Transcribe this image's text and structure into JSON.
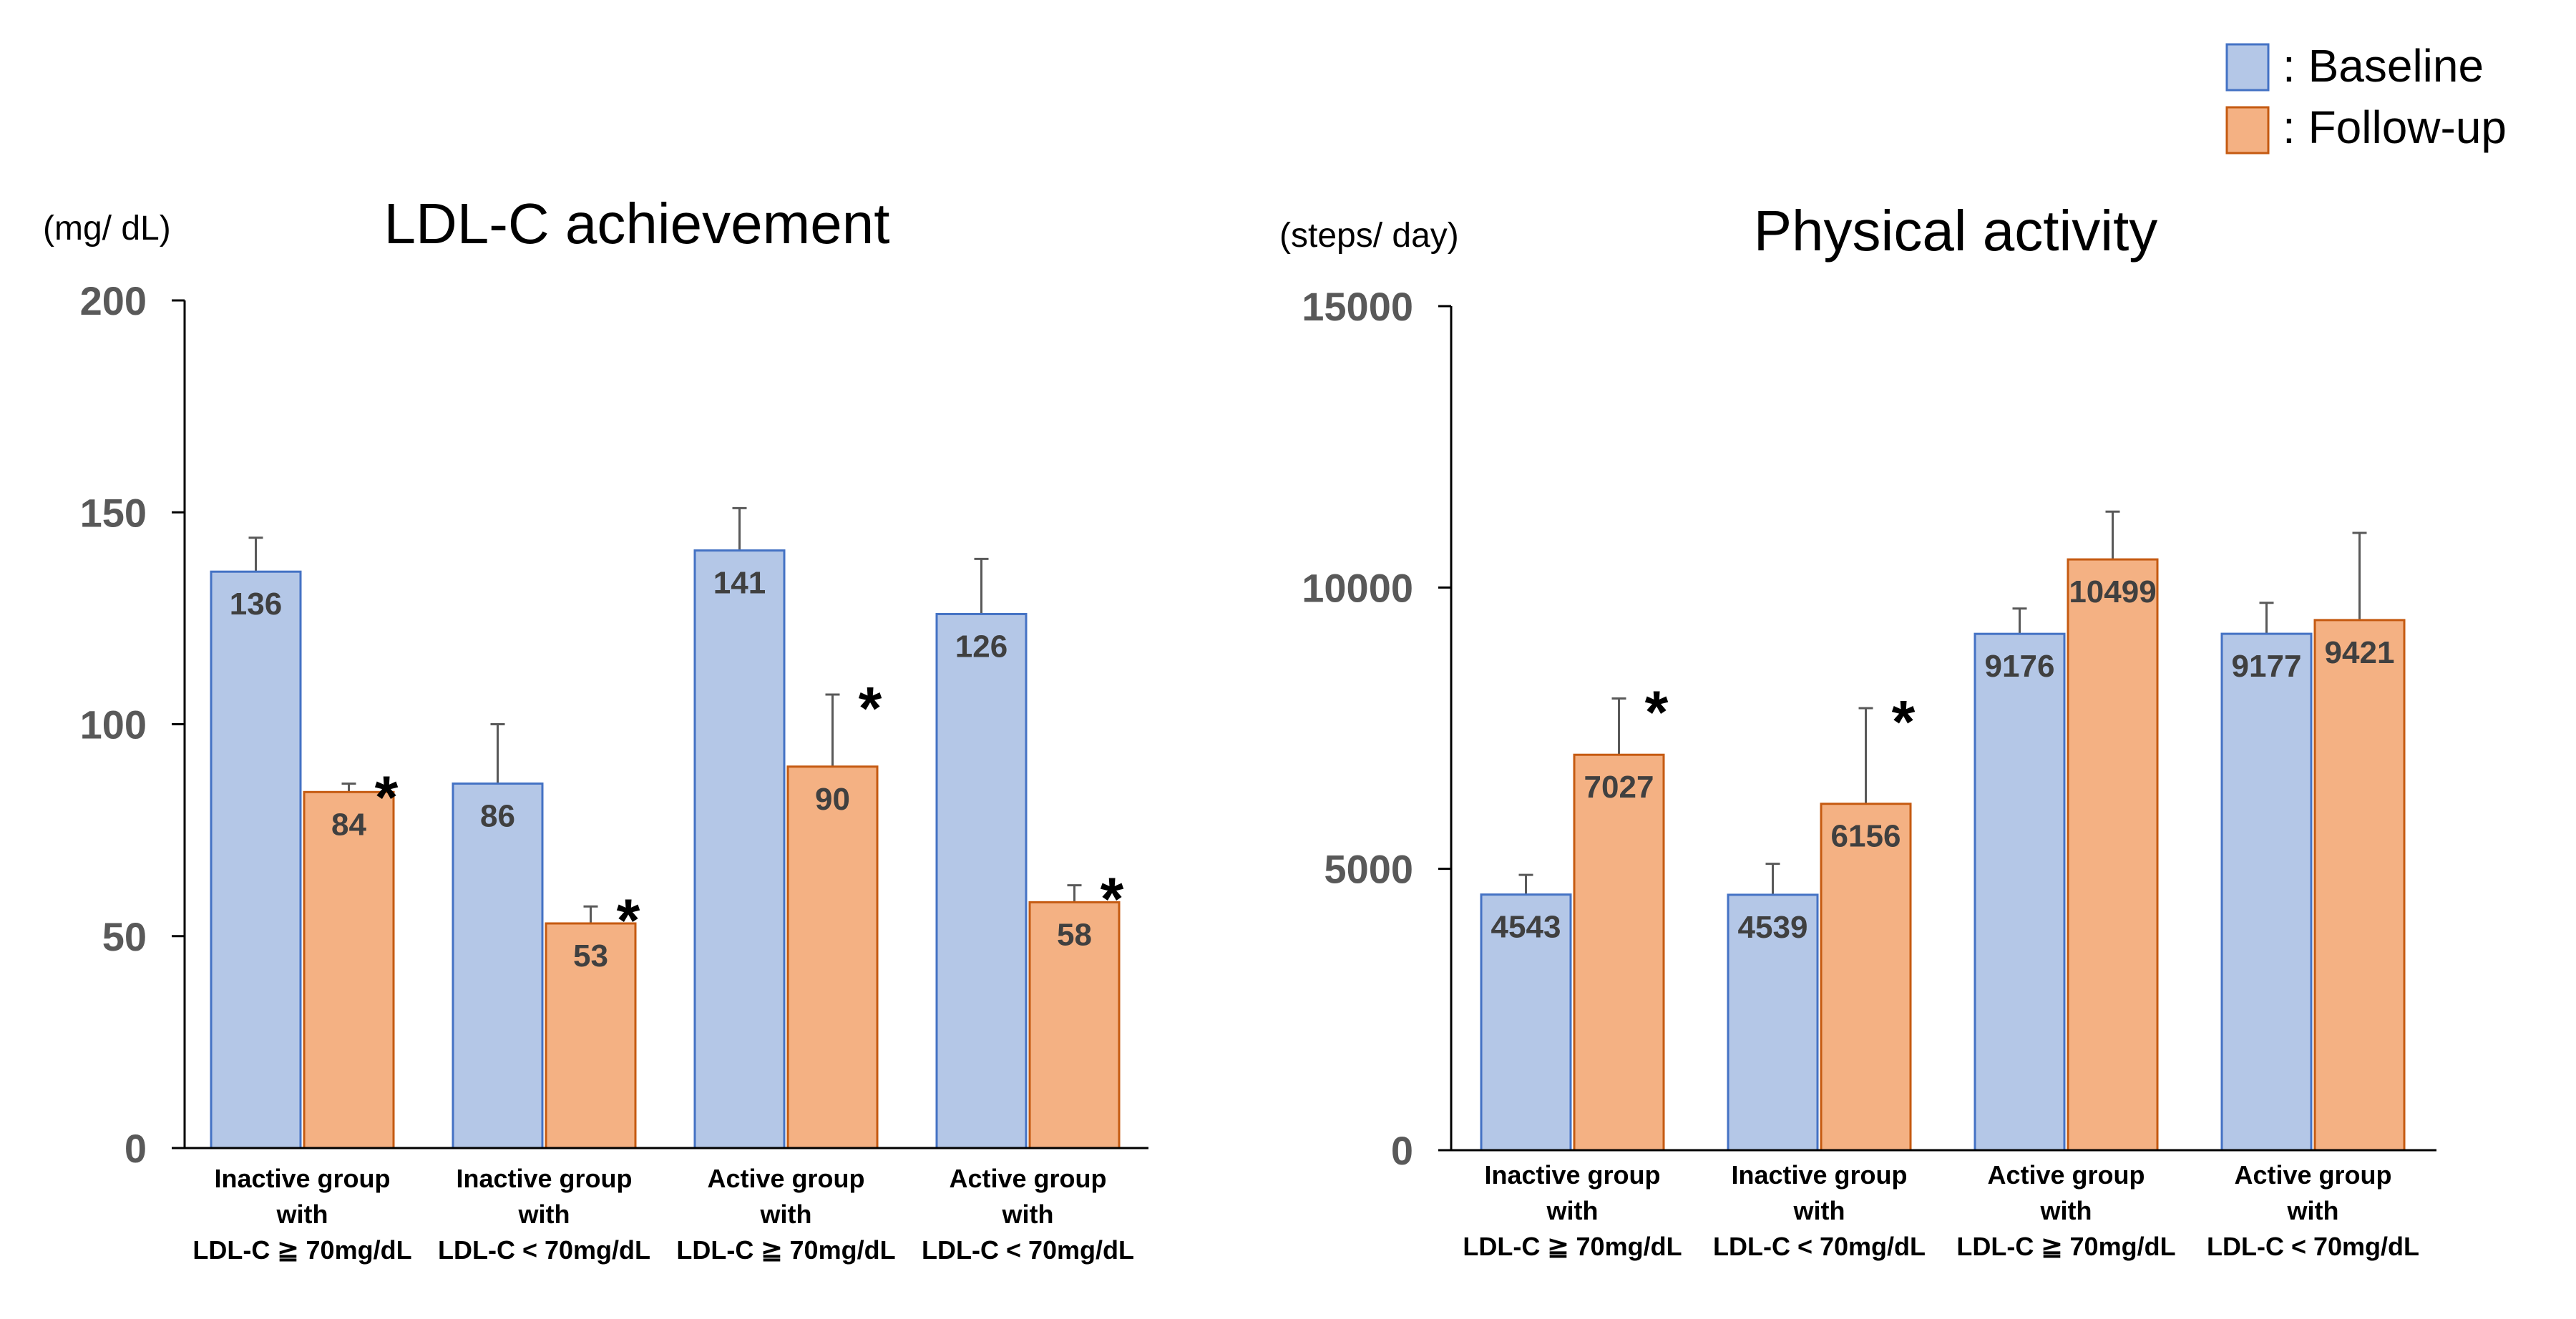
{
  "legend": {
    "baseline_label": ": Baseline",
    "followup_label": ": Follow-up",
    "baseline_color": "#b4c7e7",
    "baseline_border": "#4472c4",
    "followup_color": "#f4b183",
    "followup_border": "#c55a11"
  },
  "chart_data": [
    {
      "type": "bar",
      "title": "LDL-C achievement",
      "unit_label": "(mg/ dL)",
      "ylim": [
        0,
        200
      ],
      "yticks": [
        "0",
        "50",
        "100",
        "150",
        "200"
      ],
      "ytick_values": [
        0,
        50,
        100,
        150,
        200
      ],
      "categories": [
        [
          "Inactive group",
          "with",
          "LDL-C  ≧  70mg/dL"
        ],
        [
          "Inactive group",
          "with",
          "LDL-C  < 70mg/dL"
        ],
        [
          "Active group",
          "with",
          "LDL-C  ≧  70mg/dL"
        ],
        [
          "Active group",
          "with",
          "LDL-C  < 70mg/dL"
        ]
      ],
      "series": [
        {
          "name": "Baseline",
          "values": [
            136,
            86,
            141,
            126
          ],
          "errors": [
            8,
            14,
            10,
            13
          ],
          "labels": [
            "136",
            "86",
            "141",
            "126"
          ]
        },
        {
          "name": "Follow-up",
          "values": [
            84,
            53,
            90,
            58
          ],
          "errors": [
            2,
            4,
            17,
            4
          ],
          "labels": [
            "84",
            "53",
            "90",
            "58"
          ]
        }
      ],
      "significance": [
        [
          "",
          ""
        ],
        [
          "",
          "*"
        ],
        [
          "",
          "*"
        ],
        [
          "",
          "*"
        ]
      ],
      "significance_marks": [
        "*",
        "*",
        "*",
        "*"
      ]
    },
    {
      "type": "bar",
      "title": "Physical activity",
      "unit_label": "(steps/ day)",
      "ylim": [
        0,
        15000
      ],
      "yticks": [
        "0",
        "5000",
        "10000",
        "15000"
      ],
      "ytick_values": [
        0,
        5000,
        10000,
        15000
      ],
      "categories": [
        [
          "Inactive group",
          "with",
          "LDL-C  ≧  70mg/dL"
        ],
        [
          "Inactive group",
          "with",
          "LDL-C  < 70mg/dL"
        ],
        [
          "Active group",
          "with",
          "LDL-C  ≧  70mg/dL"
        ],
        [
          "Active group",
          "with",
          "LDL-C  < 70mg/dL"
        ]
      ],
      "series": [
        {
          "name": "Baseline",
          "values": [
            4543,
            4539,
            9176,
            9177
          ],
          "errors": [
            350,
            550,
            450,
            550
          ],
          "labels": [
            "4543",
            "4539",
            "9176",
            "9177"
          ]
        },
        {
          "name": "Follow-up",
          "values": [
            7027,
            6156,
            10499,
            9421
          ],
          "errors": [
            1000,
            1700,
            850,
            1550
          ],
          "labels": [
            "7027",
            "6156",
            "10499",
            "9421"
          ]
        }
      ],
      "significance_marks": [
        "*",
        "*",
        "",
        ""
      ]
    }
  ]
}
